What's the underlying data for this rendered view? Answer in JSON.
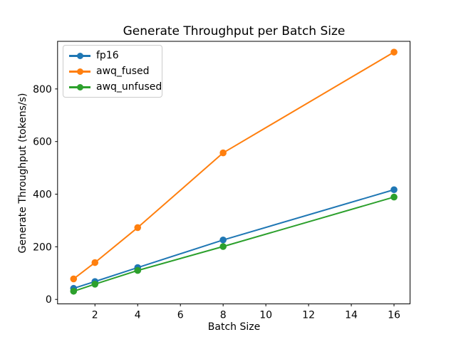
{
  "figure": {
    "background": "#ffffff",
    "axis_color": "#000000"
  },
  "chart_data": {
    "type": "line",
    "title": "Generate Throughput per Batch Size",
    "xlabel": "Batch Size",
    "ylabel": "Generate Throughput (tokens/s)",
    "x": [
      1,
      2,
      4,
      8,
      16
    ],
    "series": [
      {
        "name": "fp16",
        "color": "#1f77b4",
        "values": [
          42,
          68,
          121,
          226,
          417
        ]
      },
      {
        "name": "awq_fused",
        "color": "#ff7f0e",
        "values": [
          78,
          140,
          273,
          557,
          940
        ]
      },
      {
        "name": "awq_unfused",
        "color": "#2ca02c",
        "values": [
          31,
          58,
          110,
          201,
          389
        ]
      }
    ],
    "xlim": [
      0.25,
      16.75
    ],
    "ylim": [
      -17,
      981
    ],
    "xticks": [
      2,
      4,
      6,
      8,
      10,
      12,
      14,
      16
    ],
    "yticks": [
      0,
      200,
      400,
      600,
      800
    ],
    "grid": false,
    "legend_position": "upper left",
    "marker": "o"
  }
}
